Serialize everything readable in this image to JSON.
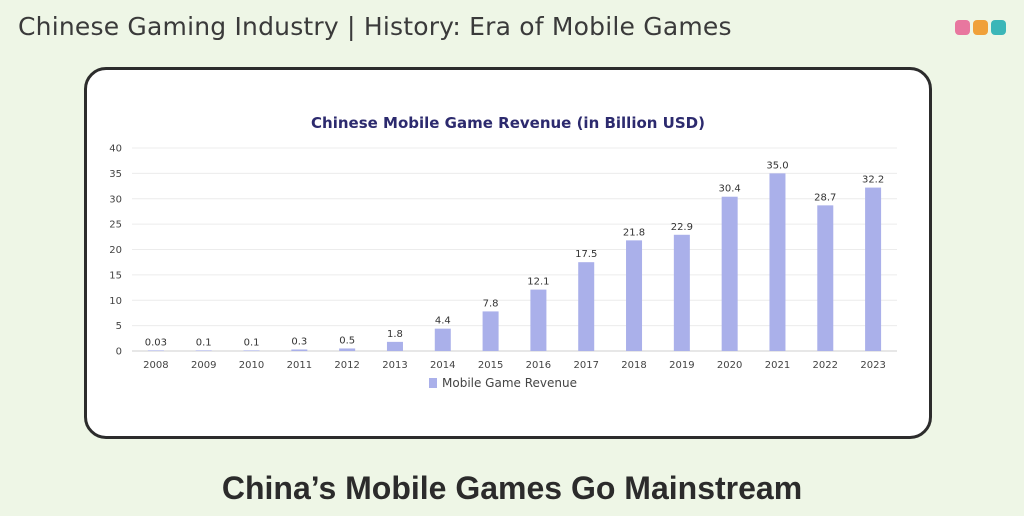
{
  "header": {
    "title": "Chinese Gaming Industry | History: Era of Mobile Games",
    "dots": [
      {
        "icon": "pink-dot-icon",
        "color": "#e8779f"
      },
      {
        "icon": "orange-dot-icon",
        "color": "#f0a13a"
      },
      {
        "icon": "teal-dot-icon",
        "color": "#3bb6b8"
      }
    ]
  },
  "footer": {
    "title": "China’s Mobile Games Go Mainstream"
  },
  "chart_data": {
    "type": "bar",
    "title": "Chinese Mobile Game Revenue (in Billion USD)",
    "xlabel": "",
    "ylabel": "",
    "categories": [
      "2008",
      "2009",
      "2010",
      "2011",
      "2012",
      "2013",
      "2014",
      "2015",
      "2016",
      "2017",
      "2018",
      "2019",
      "2020",
      "2021",
      "2022",
      "2023"
    ],
    "series": [
      {
        "name": "Mobile Game Revenue",
        "values": [
          0.03,
          0.1,
          0.1,
          0.3,
          0.5,
          1.8,
          4.4,
          7.8,
          12.1,
          17.5,
          21.8,
          22.9,
          30.4,
          35.0,
          28.7,
          32.2
        ],
        "labels": [
          "0.03",
          "0.1",
          "0.1",
          "0.3",
          "0.5",
          "1.8",
          "4.4",
          "7.8",
          "12.1",
          "17.5",
          "21.8",
          "22.9",
          "30.4",
          "35.0",
          "28.7",
          "32.2"
        ],
        "color": "#aab0ea"
      }
    ],
    "yticks": [
      0,
      5,
      10,
      15,
      20,
      25,
      30,
      35,
      40
    ],
    "ylim": [
      0,
      40
    ],
    "grid": true,
    "legend": "bottom"
  }
}
